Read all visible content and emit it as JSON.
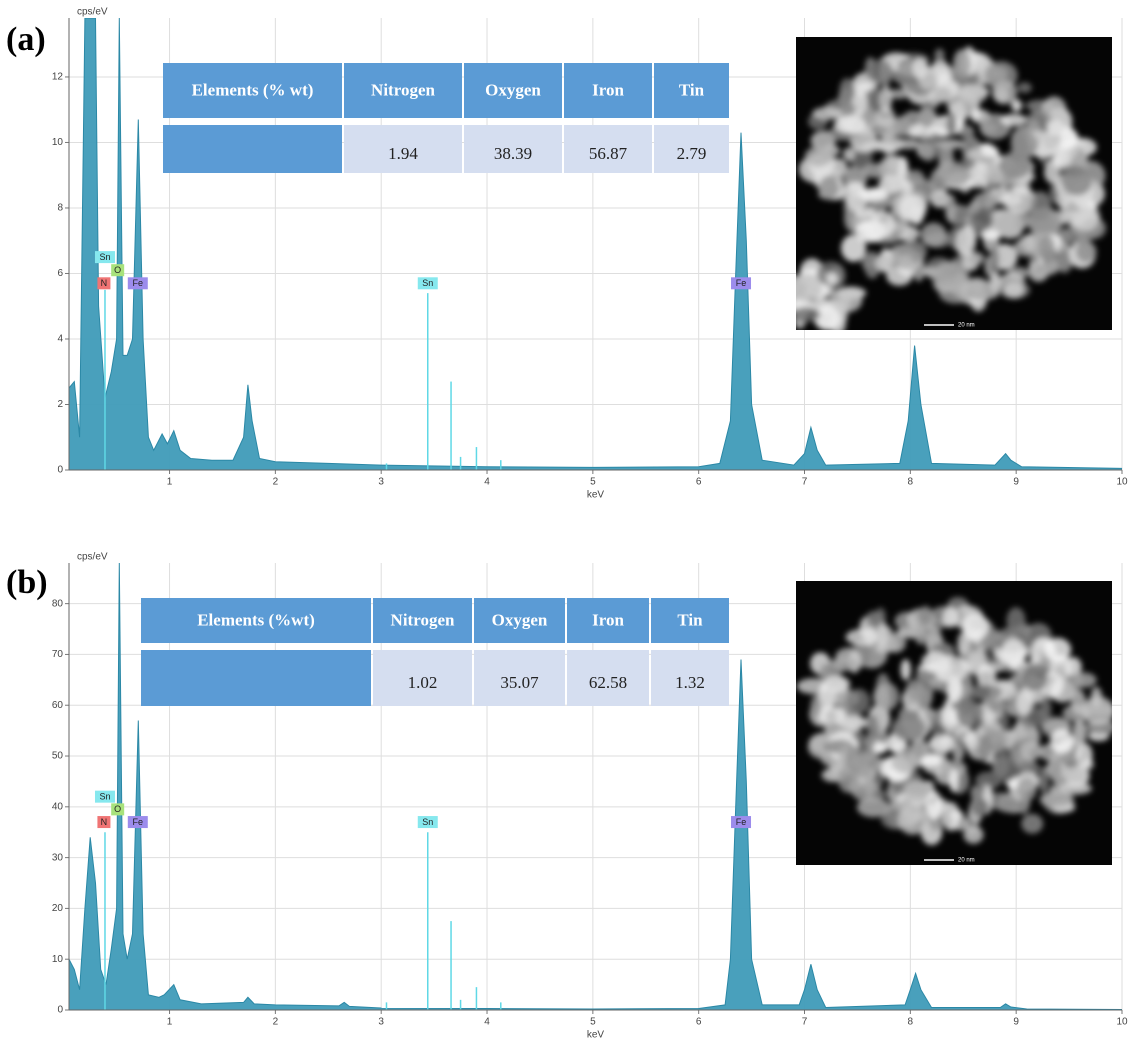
{
  "chart_data": [
    {
      "type": "area",
      "panel_label": "(a)",
      "xlabel": "keV",
      "ylabel": "cps/eV",
      "xlim": [
        0.05,
        10
      ],
      "ylim": [
        0,
        13.8
      ],
      "xticks": [
        1,
        2,
        3,
        4,
        5,
        6,
        7,
        8,
        9,
        10
      ],
      "yticks": [
        0,
        2,
        4,
        6,
        8,
        10,
        12
      ],
      "grid": true,
      "color": "#3f9bb8",
      "x": [
        0.05,
        0.1,
        0.15,
        0.2,
        0.3,
        0.33,
        0.39,
        0.45,
        0.5,
        0.525,
        0.56,
        0.6,
        0.65,
        0.705,
        0.75,
        0.8,
        0.85,
        0.93,
        0.98,
        1.04,
        1.1,
        1.2,
        1.4,
        1.6,
        1.7,
        1.74,
        1.78,
        1.85,
        2.0,
        2.5,
        3.0,
        4.0,
        5.0,
        6.0,
        6.2,
        6.3,
        6.35,
        6.4,
        6.45,
        6.5,
        6.6,
        6.9,
        7.0,
        7.06,
        7.12,
        7.2,
        7.9,
        7.98,
        8.04,
        8.1,
        8.2,
        8.8,
        8.9,
        8.95,
        9.05,
        10.0
      ],
      "values": [
        2.5,
        2.7,
        1,
        13.8,
        13.8,
        5,
        2.2,
        3,
        4,
        13.8,
        3.5,
        3.5,
        4,
        10.7,
        4,
        1,
        0.6,
        1.1,
        0.8,
        1.2,
        0.6,
        0.35,
        0.3,
        0.3,
        1,
        2.6,
        1.5,
        0.35,
        0.25,
        0.2,
        0.15,
        0.1,
        0.08,
        0.1,
        0.2,
        1.5,
        6,
        10.3,
        7,
        2,
        0.3,
        0.15,
        0.5,
        1.3,
        0.6,
        0.15,
        0.2,
        1.5,
        3.8,
        2,
        0.2,
        0.15,
        0.5,
        0.3,
        0.1,
        0.05
      ],
      "spikes": {
        "color": "#5fd8e6",
        "x": [
          0.39,
          3.05,
          3.44,
          3.66,
          3.75,
          3.9,
          4.13
        ],
        "values": [
          5.5,
          0.2,
          5.4,
          2.7,
          0.4,
          0.7,
          0.3
        ]
      },
      "annotations": [
        {
          "text": "Sn",
          "x": 0.39,
          "y": 6.5,
          "color": "#86e8ee"
        },
        {
          "text": "O",
          "x": 0.51,
          "y": 6.1,
          "color": "#a8e27c"
        },
        {
          "text": "N",
          "x": 0.38,
          "y": 5.7,
          "color": "#f07474"
        },
        {
          "text": "Fe",
          "x": 0.7,
          "y": 5.7,
          "color": "#9c8cec"
        },
        {
          "text": "Sn",
          "x": 3.44,
          "y": 5.7,
          "color": "#86e8ee"
        },
        {
          "text": "Fe",
          "x": 6.4,
          "y": 5.7,
          "color": "#9c8cec"
        }
      ],
      "table": {
        "header": [
          "Elements (% wt)",
          "Nitrogen",
          "Oxygen",
          "Iron",
          "Tin"
        ],
        "values": [
          1.94,
          38.39,
          56.87,
          2.79
        ]
      },
      "image_scale_bar": "20 nm"
    },
    {
      "type": "area",
      "panel_label": "(b)",
      "xlabel": "keV",
      "ylabel": "cps/eV",
      "xlim": [
        0.05,
        10
      ],
      "ylim": [
        0,
        88
      ],
      "xticks": [
        1,
        2,
        3,
        4,
        5,
        6,
        7,
        8,
        9,
        10
      ],
      "yticks": [
        0,
        10,
        20,
        30,
        40,
        50,
        60,
        70,
        80
      ],
      "grid": true,
      "color": "#3f9bb8",
      "x": [
        0.05,
        0.1,
        0.15,
        0.2,
        0.25,
        0.3,
        0.35,
        0.4,
        0.45,
        0.5,
        0.525,
        0.56,
        0.6,
        0.65,
        0.705,
        0.75,
        0.8,
        0.9,
        0.95,
        1.04,
        1.1,
        1.3,
        1.7,
        1.74,
        1.8,
        2.0,
        2.6,
        2.65,
        2.7,
        3.0,
        4.0,
        5.0,
        6.0,
        6.25,
        6.3,
        6.35,
        6.4,
        6.45,
        6.5,
        6.6,
        6.95,
        7.0,
        7.06,
        7.12,
        7.2,
        7.95,
        8.0,
        8.05,
        8.1,
        8.2,
        8.85,
        8.9,
        8.95,
        9.1,
        10.0
      ],
      "values": [
        10,
        8,
        4,
        20,
        34,
        25,
        8,
        5,
        12,
        20,
        88,
        15,
        10,
        15,
        57,
        15,
        3,
        2.5,
        3,
        5,
        2,
        1.2,
        1.5,
        2.5,
        1.2,
        1,
        0.8,
        1.5,
        0.7,
        0.4,
        0.3,
        0.2,
        0.3,
        1,
        10,
        40,
        69,
        45,
        10,
        1,
        1,
        4,
        9,
        4,
        0.5,
        1,
        4,
        7.2,
        4,
        0.5,
        0.5,
        1.2,
        0.6,
        0.2,
        0.1
      ],
      "spikes": {
        "color": "#5fd8e6",
        "x": [
          0.39,
          3.05,
          3.44,
          3.66,
          3.75,
          3.9,
          4.13
        ],
        "values": [
          35,
          1.5,
          35,
          17.5,
          2,
          4.5,
          1.5
        ]
      },
      "annotations": [
        {
          "text": "Sn",
          "x": 0.39,
          "y": 42,
          "color": "#86e8ee"
        },
        {
          "text": "O",
          "x": 0.51,
          "y": 39.5,
          "color": "#a8e27c"
        },
        {
          "text": "N",
          "x": 0.38,
          "y": 37,
          "color": "#f07474"
        },
        {
          "text": "Fe",
          "x": 0.7,
          "y": 37,
          "color": "#9c8cec"
        },
        {
          "text": "Sn",
          "x": 3.44,
          "y": 37,
          "color": "#86e8ee"
        },
        {
          "text": "Fe",
          "x": 6.4,
          "y": 37,
          "color": "#9c8cec"
        }
      ],
      "table": {
        "header": [
          "Elements (%wt)",
          "Nitrogen",
          "Oxygen",
          "Iron",
          "Tin"
        ],
        "values": [
          1.02,
          35.07,
          62.58,
          1.32
        ]
      },
      "image_scale_bar": "20 nm"
    }
  ]
}
